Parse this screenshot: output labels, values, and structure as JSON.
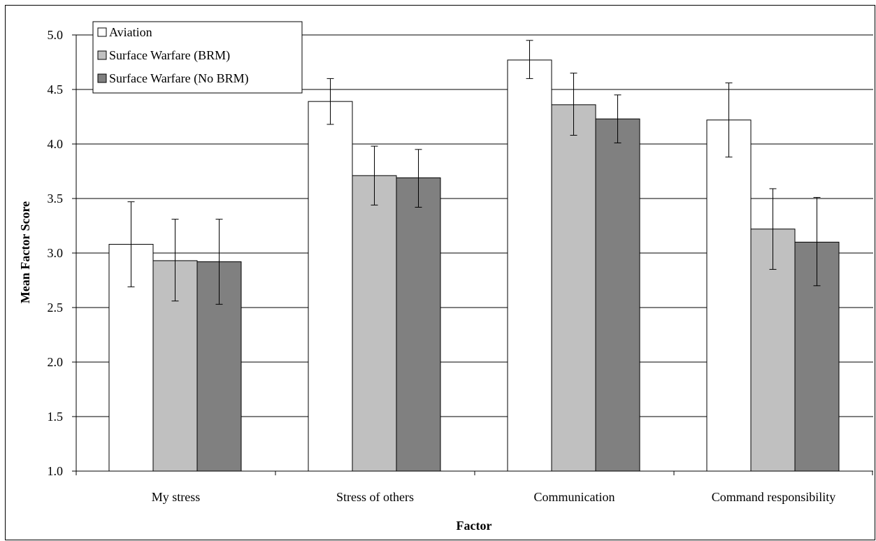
{
  "chart_data": {
    "type": "bar",
    "title": "",
    "xlabel": "Factor",
    "ylabel": "Mean Factor Score",
    "ylim": [
      1.0,
      5.0
    ],
    "yticks": [
      "1.0",
      "1.5",
      "2.0",
      "2.5",
      "3.0",
      "3.5",
      "4.0",
      "4.5",
      "5.0"
    ],
    "ytick_values": [
      1.0,
      1.5,
      2.0,
      2.5,
      3.0,
      3.5,
      4.0,
      4.5,
      5.0
    ],
    "grid": true,
    "legend_position": "top-left",
    "categories": [
      "My stress",
      "Stress of others",
      "Communication",
      "Command responsibility"
    ],
    "series": [
      {
        "name": "Aviation",
        "color": "#ffffff",
        "values": [
          3.08,
          4.39,
          4.77,
          4.22
        ],
        "error_low": [
          2.69,
          4.18,
          4.6,
          3.88
        ],
        "error_high": [
          3.47,
          4.6,
          4.95,
          4.56
        ]
      },
      {
        "name": "Surface Warfare (BRM)",
        "color": "#c0c0c0",
        "values": [
          2.93,
          3.71,
          4.36,
          3.22
        ],
        "error_low": [
          2.56,
          3.44,
          4.08,
          2.85
        ],
        "error_high": [
          3.31,
          3.98,
          4.65,
          3.59
        ]
      },
      {
        "name": "Surface Warfare (No BRM)",
        "color": "#808080",
        "values": [
          2.92,
          3.69,
          4.23,
          3.1
        ],
        "error_low": [
          2.53,
          3.42,
          4.01,
          2.7
        ],
        "error_high": [
          3.31,
          3.95,
          4.45,
          3.51
        ]
      }
    ]
  }
}
